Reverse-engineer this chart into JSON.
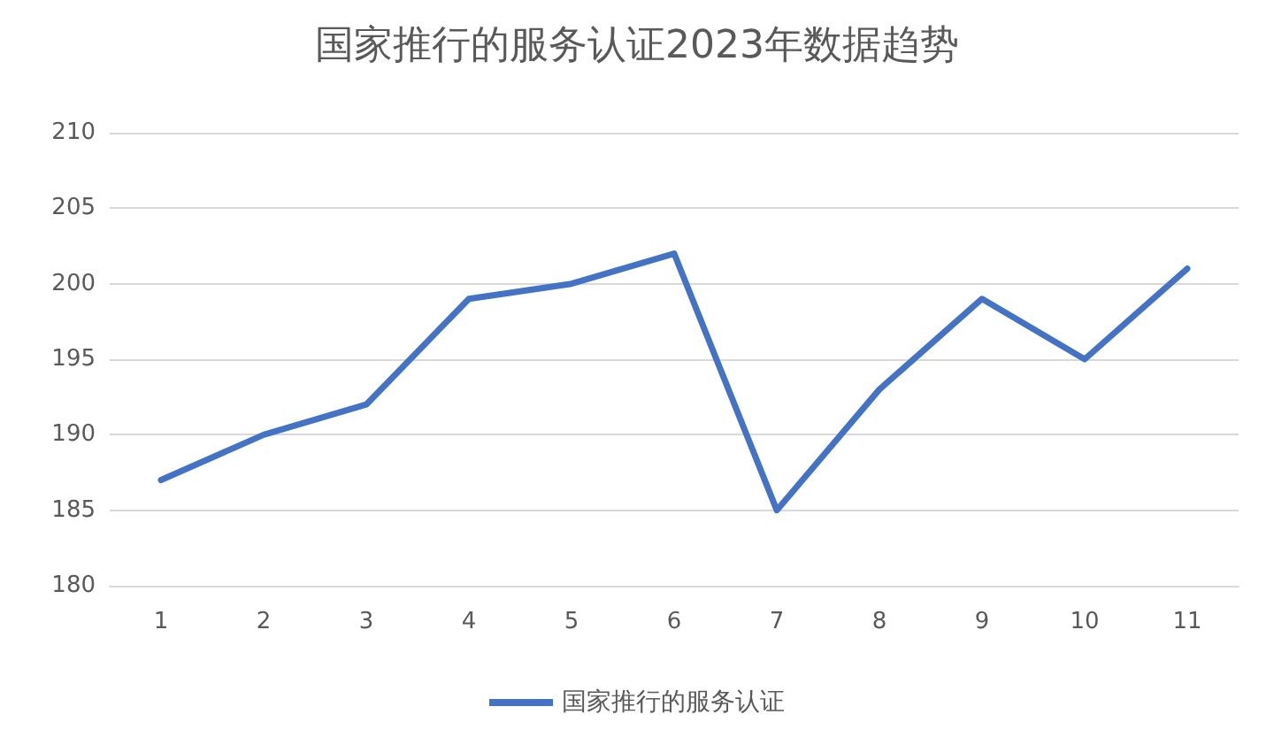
{
  "chart_data": {
    "type": "line",
    "title": "国家推行的服务认证2023年数据趋势",
    "categories": [
      "1",
      "2",
      "3",
      "4",
      "5",
      "6",
      "7",
      "8",
      "9",
      "10",
      "11"
    ],
    "series": [
      {
        "name": "国家推行的服务认证",
        "color": "#4472c4",
        "values": [
          187,
          190,
          192,
          199,
          200,
          202,
          185,
          193,
          199,
          195,
          201
        ]
      }
    ],
    "ylim": [
      180,
      210
    ],
    "yticks": [
      180,
      185,
      190,
      195,
      200,
      205,
      210
    ],
    "grid": "y",
    "legend": "bottom",
    "marker": "none",
    "line_style": "solid"
  }
}
